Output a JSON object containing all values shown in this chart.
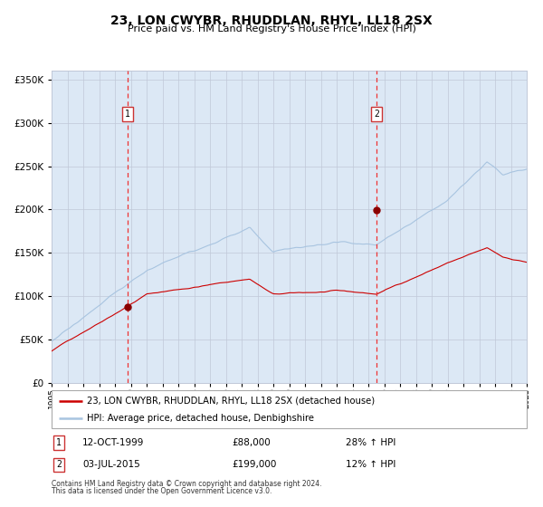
{
  "title": "23, LON CWYBR, RHUDDLAN, RHYL, LL18 2SX",
  "subtitle": "Price paid vs. HM Land Registry's House Price Index (HPI)",
  "legend_line1": "23, LON CWYBR, RHUDDLAN, RHYL, LL18 2SX (detached house)",
  "legend_line2": "HPI: Average price, detached house, Denbighshire",
  "annotation1_label": "1",
  "annotation1_date": "12-OCT-1999",
  "annotation1_price": "£88,000",
  "annotation1_hpi": "28% ↑ HPI",
  "annotation2_label": "2",
  "annotation2_date": "03-JUL-2015",
  "annotation2_price": "£199,000",
  "annotation2_hpi": "12% ↑ HPI",
  "footnote1": "Contains HM Land Registry data © Crown copyright and database right 2024.",
  "footnote2": "This data is licensed under the Open Government Licence v3.0.",
  "hpi_line_color": "#a8c4e0",
  "price_line_color": "#cc0000",
  "marker_color": "#8b0000",
  "vline_color": "#ee3333",
  "background_color": "#dce8f5",
  "ylim_min": 0,
  "ylim_max": 360000,
  "year_start": 1995,
  "year_end": 2025,
  "sale1_year": 1999.78,
  "sale1_value": 88000,
  "sale2_year": 2015.5,
  "sale2_value": 199000
}
